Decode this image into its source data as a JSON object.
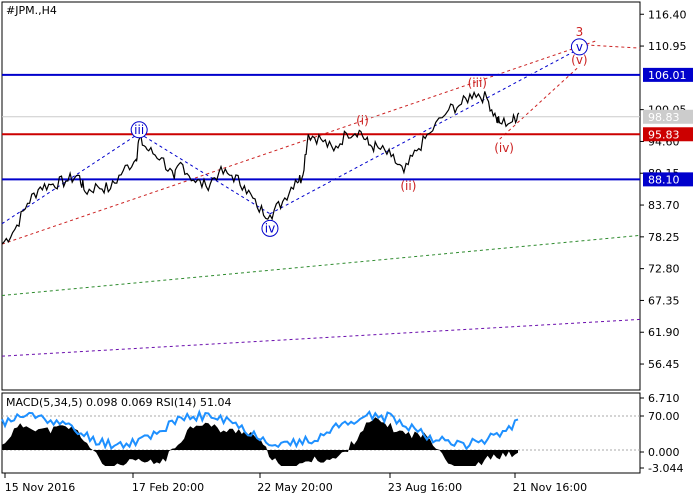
{
  "chart_data": {
    "type": "line",
    "title": "#JPM.,H4",
    "price_axis": {
      "ylim": [
        52.0,
        118.5
      ],
      "ticks": [
        "116.40",
        "110.95",
        "100.05",
        "94.60",
        "89.15",
        "83.70",
        "78.25",
        "72.80",
        "67.35",
        "61.90",
        "56.45"
      ]
    },
    "time_labels": [
      "15 Nov 2016",
      "17 Feb 20:00",
      "22 May 20:00",
      "23 Aug 16:00",
      "21 Nov 16:00"
    ],
    "price_series": {
      "name": "",
      "points": [
        [
          0,
          77.0
        ],
        [
          0.02,
          79.5
        ],
        [
          0.04,
          84.0
        ],
        [
          0.06,
          86.8
        ],
        [
          0.08,
          87.3
        ],
        [
          0.1,
          87.8
        ],
        [
          0.12,
          88.8
        ],
        [
          0.13,
          86.0
        ],
        [
          0.15,
          86.9
        ],
        [
          0.17,
          86.5
        ],
        [
          0.19,
          89.6
        ],
        [
          0.21,
          91.5
        ],
        [
          0.215,
          95.0
        ],
        [
          0.23,
          93.0
        ],
        [
          0.25,
          91.8
        ],
        [
          0.27,
          88.2
        ],
        [
          0.28,
          91.0
        ],
        [
          0.3,
          88.0
        ],
        [
          0.32,
          86.9
        ],
        [
          0.34,
          89.3
        ],
        [
          0.36,
          88.8
        ],
        [
          0.38,
          87.0
        ],
        [
          0.4,
          83.3
        ],
        [
          0.42,
          82.0
        ],
        [
          0.44,
          84.3
        ],
        [
          0.46,
          88.0
        ],
        [
          0.47,
          88.3
        ],
        [
          0.48,
          95.8
        ],
        [
          0.5,
          95.0
        ],
        [
          0.52,
          93.0
        ],
        [
          0.54,
          96.0
        ],
        [
          0.56,
          96.5
        ],
        [
          0.575,
          94.0
        ],
        [
          0.59,
          93.5
        ],
        [
          0.61,
          92.0
        ],
        [
          0.63,
          89.3
        ],
        [
          0.65,
          93.0
        ],
        [
          0.67,
          96.0
        ],
        [
          0.7,
          100.0
        ],
        [
          0.72,
          101.0
        ],
        [
          0.74,
          103.0
        ],
        [
          0.76,
          102.0
        ],
        [
          0.775,
          98.5
        ],
        [
          0.78,
          97.8
        ],
        [
          0.8,
          98.0
        ],
        [
          0.81,
          99.5
        ]
      ]
    },
    "levels": [
      {
        "value": 106.01,
        "label": "106.01",
        "color": "#0000cc"
      },
      {
        "value": 95.83,
        "label": "95.83",
        "color": "#cc0000"
      },
      {
        "value": 88.1,
        "label": "88.10",
        "color": "#0000cc"
      },
      {
        "value": 98.83,
        "label": "98.83",
        "color": "#cccccc"
      }
    ],
    "wave_labels": [
      {
        "text": "iii",
        "color": "#0000cc",
        "circled": true,
        "x": 0.215,
        "y": 96.6
      },
      {
        "text": "iv",
        "color": "#0000cc",
        "circled": true,
        "x": 0.42,
        "y": 79.7
      },
      {
        "text": "v",
        "color": "#0000cc",
        "circled": true,
        "x": 0.905,
        "y": 110.8
      },
      {
        "text": "3",
        "color": "#cc2222",
        "circled": false,
        "x": 0.905,
        "y": 113.4
      },
      {
        "text": "(i)",
        "color": "#cc2222",
        "circled": false,
        "x": 0.565,
        "y": 98.2
      },
      {
        "text": "(ii)",
        "color": "#cc2222",
        "circled": false,
        "x": 0.637,
        "y": 87.0
      },
      {
        "text": "(iii)",
        "color": "#cc2222",
        "circled": false,
        "x": 0.745,
        "y": 104.6
      },
      {
        "text": "(iv)",
        "color": "#cc2222",
        "circled": false,
        "x": 0.787,
        "y": 93.5
      },
      {
        "text": "(v)",
        "color": "#cc2222",
        "circled": false,
        "x": 0.905,
        "y": 108.6
      }
    ],
    "trend_lines": [
      {
        "style": "dashed",
        "color": "#cc2222",
        "from": [
          0,
          77.0
        ],
        "to": [
          0.93,
          111.8
        ]
      },
      {
        "style": "dashed",
        "color": "#cc2222",
        "from": [
          0.78,
          95.0
        ],
        "to": [
          0.905,
          107.5
        ]
      },
      {
        "style": "dashed",
        "color": "#cc2222",
        "from": [
          0.905,
          111.2
        ],
        "to": [
          1.0,
          110.6
        ]
      },
      {
        "style": "dashed",
        "color": "#0000cc",
        "from": [
          0,
          80.5
        ],
        "to": [
          0.215,
          96.0
        ]
      },
      {
        "style": "dashed",
        "color": "#0000cc",
        "from": [
          0.215,
          96.0
        ],
        "to": [
          0.42,
          82.2
        ]
      },
      {
        "style": "dashed",
        "color": "#0000cc",
        "from": [
          0.42,
          82.2
        ],
        "to": [
          0.905,
          110.5
        ]
      },
      {
        "style": "dashed",
        "color": "#2e8b2e",
        "from": [
          0,
          68.2
        ],
        "to": [
          1.0,
          78.5
        ]
      },
      {
        "style": "dashed",
        "color": "#6a0dad",
        "from": [
          0,
          57.8
        ],
        "to": [
          1.0,
          64.1
        ]
      }
    ],
    "indicator": {
      "label": "MACD(5,34,5) 0.098 0.069 RSI(14) 51.04",
      "ticks": [
        "6.710",
        "70.00",
        "0.000",
        "-3.044"
      ]
    }
  }
}
